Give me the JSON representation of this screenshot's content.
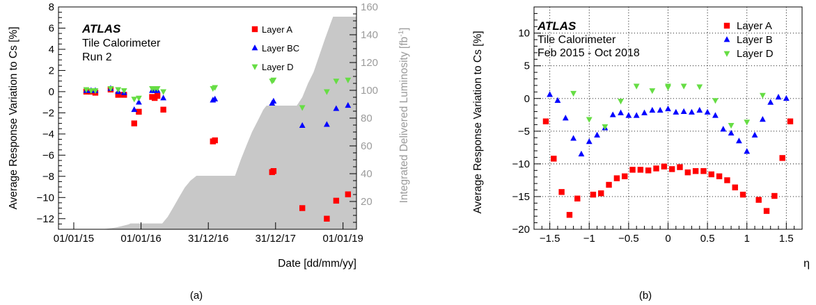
{
  "chart_data": [
    {
      "type": "scatter",
      "panel_label": "(a)",
      "title_bold": "ATLAS",
      "title_lines": [
        "Tile Calorimeter",
        "Run 2"
      ],
      "xlabel": "Date [dd/mm/yy]",
      "ylabel": "Average Response Variation to Cs [%]",
      "y2label": "Integrated Delivered Luminosity [fb",
      "y2label_sup": "-1",
      "y2label_end": "]",
      "x_ticks": [
        "01/01/15",
        "01/01/16",
        "31/12/16",
        "31/12/17",
        "01/01/19"
      ],
      "x_tick_dates": [
        "2015-01-01",
        "2016-01-01",
        "2016-12-31",
        "2017-12-31",
        "2019-01-01"
      ],
      "xlim": [
        "2014-10-10",
        "2019-03-15"
      ],
      "ylim": [
        -13,
        8
      ],
      "y_ticks": [
        -12,
        -10,
        -8,
        -6,
        -4,
        -2,
        0,
        2,
        4,
        6,
        8
      ],
      "y2lim": [
        0,
        160
      ],
      "y2_ticks": [
        20,
        40,
        60,
        80,
        100,
        120,
        140,
        160
      ],
      "y2_color": "#9b9b9b",
      "luminosity": {
        "color": "#c8c8c8",
        "dates": [
          "2015-05-15",
          "2015-06-25",
          "2015-07-25",
          "2015-08-25",
          "2015-09-25",
          "2015-10-25",
          "2015-11-05",
          "2016-04-25",
          "2016-05-25",
          "2016-06-25",
          "2016-07-25",
          "2016-08-25",
          "2016-09-25",
          "2016-10-28",
          "2017-05-25",
          "2017-06-25",
          "2017-07-25",
          "2017-08-25",
          "2017-09-25",
          "2017-10-25",
          "2017-11-12",
          "2018-04-25",
          "2018-05-25",
          "2018-06-25",
          "2018-07-25",
          "2018-08-25",
          "2018-09-25",
          "2018-10-25",
          "2018-11-08",
          "2019-03-15"
        ],
        "values": [
          0,
          0.3,
          0.8,
          1.5,
          2.5,
          3.5,
          4.2,
          4.2,
          9,
          16,
          23,
          30,
          35,
          38.5,
          38.5,
          50,
          60,
          70,
          78,
          86,
          89,
          89,
          95,
          105,
          113,
          125,
          137,
          148,
          153,
          153
        ]
      },
      "series": [
        {
          "name": "Layer A",
          "marker": "square",
          "color": "#ff0000",
          "dates": [
            "2015-03-10",
            "2015-04-05",
            "2015-04-28",
            "2015-07-20",
            "2015-08-30",
            "2015-10-01",
            "2015-11-25",
            "2015-12-20",
            "2016-03-01",
            "2016-03-15",
            "2016-03-30",
            "2016-05-01",
            "2017-01-25",
            "2017-02-05",
            "2017-12-12",
            "2017-12-20",
            "2018-05-25",
            "2018-10-05",
            "2018-11-25",
            "2019-01-28"
          ],
          "values": [
            0,
            0,
            -0.1,
            0.2,
            -0.3,
            -0.3,
            -3.0,
            -1.9,
            -0.5,
            -0.6,
            -0.4,
            -1.7,
            -4.7,
            -4.6,
            -7.6,
            -7.5,
            -11.0,
            -12.0,
            -10.3,
            -9.7
          ]
        },
        {
          "name": "Layer BC",
          "marker": "triangle-up",
          "color": "#0000ff",
          "dates": [
            "2015-03-10",
            "2015-04-05",
            "2015-04-28",
            "2015-07-20",
            "2015-08-30",
            "2015-10-01",
            "2015-11-25",
            "2015-12-20",
            "2016-03-01",
            "2016-03-15",
            "2016-03-30",
            "2016-05-01",
            "2017-01-25",
            "2017-02-05",
            "2017-12-12",
            "2017-12-20",
            "2018-05-25",
            "2018-10-05",
            "2018-11-25",
            "2019-01-28"
          ],
          "values": [
            0.1,
            0.1,
            0.1,
            0.3,
            0,
            -0.1,
            -1.7,
            -1.0,
            0.1,
            0.1,
            0.1,
            -0.6,
            -0.8,
            -0.7,
            -1.1,
            -0.9,
            -3.2,
            -3.1,
            -1.6,
            -1.3
          ]
        },
        {
          "name": "Layer D",
          "marker": "triangle-down",
          "color": "#66dd44",
          "dates": [
            "2015-03-10",
            "2015-04-05",
            "2015-04-28",
            "2015-07-20",
            "2015-08-30",
            "2015-10-01",
            "2015-11-25",
            "2015-12-20",
            "2016-03-01",
            "2016-03-15",
            "2016-03-30",
            "2016-05-01",
            "2017-01-25",
            "2017-02-05",
            "2017-12-12",
            "2017-12-20",
            "2018-05-25",
            "2018-10-05",
            "2018-11-25",
            "2019-01-28"
          ],
          "values": [
            0.2,
            0.1,
            0.1,
            0.3,
            0.2,
            0.1,
            -0.7,
            -0.6,
            0.3,
            0.3,
            0.3,
            0.0,
            0.3,
            0.4,
            1.0,
            1.1,
            -1.5,
            0.0,
            1.0,
            1.1
          ]
        }
      ],
      "legend_position": "top-right"
    },
    {
      "type": "scatter",
      "panel_label": "(b)",
      "title_bold": "ATLAS",
      "title_lines": [
        "Tile Calorimeter",
        "Feb 2015 - Oct 2018"
      ],
      "xlabel": "η",
      "ylabel": "Average Response Variation to Cs [%]",
      "xlim": [
        -1.7,
        1.7
      ],
      "x_ticks": [
        -1.5,
        -1,
        -0.5,
        0,
        0.5,
        1,
        1.5
      ],
      "x_tick_labels": [
        "−1.5",
        "−1",
        "−0.5",
        "0",
        "0.5",
        "1",
        "1.5"
      ],
      "ylim": [
        -20,
        14
      ],
      "y_ticks": [
        -20,
        -15,
        -10,
        -5,
        0,
        5,
        10
      ],
      "y_tick_labels": [
        "−20",
        "−15",
        "−10",
        "−5",
        "0",
        "5",
        "10"
      ],
      "grid": true,
      "series": [
        {
          "name": "Layer A",
          "marker": "square",
          "color": "#ff0000",
          "x": [
            -1.55,
            -1.45,
            -1.35,
            -1.25,
            -1.15,
            -0.95,
            -0.85,
            -0.75,
            -0.65,
            -0.55,
            -0.45,
            -0.35,
            -0.25,
            -0.15,
            -0.05,
            0.05,
            0.15,
            0.25,
            0.35,
            0.45,
            0.55,
            0.65,
            0.75,
            0.85,
            0.95,
            1.15,
            1.25,
            1.35,
            1.45,
            1.55
          ],
          "values": [
            -3.5,
            -9.2,
            -14.3,
            -17.8,
            -15.3,
            -14.7,
            -14.5,
            -13.2,
            -12.2,
            -11.9,
            -10.9,
            -10.9,
            -11.0,
            -10.7,
            -10.4,
            -10.8,
            -10.5,
            -11.3,
            -11.1,
            -11.1,
            -11.6,
            -11.9,
            -12.5,
            -13.6,
            -14.7,
            -15.5,
            -17.2,
            -14.9,
            -9.1,
            -3.5
          ]
        },
        {
          "name": "Layer B",
          "marker": "triangle-up",
          "color": "#0000ff",
          "x": [
            -1.5,
            -1.4,
            -1.3,
            -1.2,
            -1.1,
            -1.0,
            -0.9,
            -0.8,
            -0.7,
            -0.6,
            -0.5,
            -0.4,
            -0.3,
            -0.2,
            -0.1,
            0.0,
            0.1,
            0.2,
            0.3,
            0.4,
            0.5,
            0.6,
            0.7,
            0.8,
            0.9,
            1.0,
            1.1,
            1.2,
            1.3,
            1.4,
            1.5
          ],
          "values": [
            0.6,
            -0.3,
            -3.0,
            -6.1,
            -8.5,
            -6.6,
            -5.6,
            -4.5,
            -2.5,
            -2.2,
            -2.6,
            -2.6,
            -2.2,
            -1.8,
            -1.8,
            -1.6,
            -2.1,
            -2.0,
            -2.1,
            -1.8,
            -2.1,
            -2.6,
            -4.7,
            -5.3,
            -6.5,
            -8.1,
            -5.6,
            -3.2,
            -0.6,
            0.2,
            0.0
          ]
        },
        {
          "name": "Layer D",
          "marker": "triangle-down",
          "color": "#66dd44",
          "x": [
            -1.2,
            -1.0,
            -0.8,
            -0.6,
            -0.4,
            -0.2,
            0.0,
            0.0,
            0.2,
            0.4,
            0.6,
            0.8,
            1.0,
            1.2
          ],
          "values": [
            0.8,
            -3.2,
            -4.3,
            -0.4,
            1.9,
            1.2,
            1.9,
            1.7,
            1.9,
            1.8,
            -0.3,
            -4.1,
            -3.6,
            0.5
          ]
        }
      ],
      "legend_position": "top-right"
    }
  ]
}
